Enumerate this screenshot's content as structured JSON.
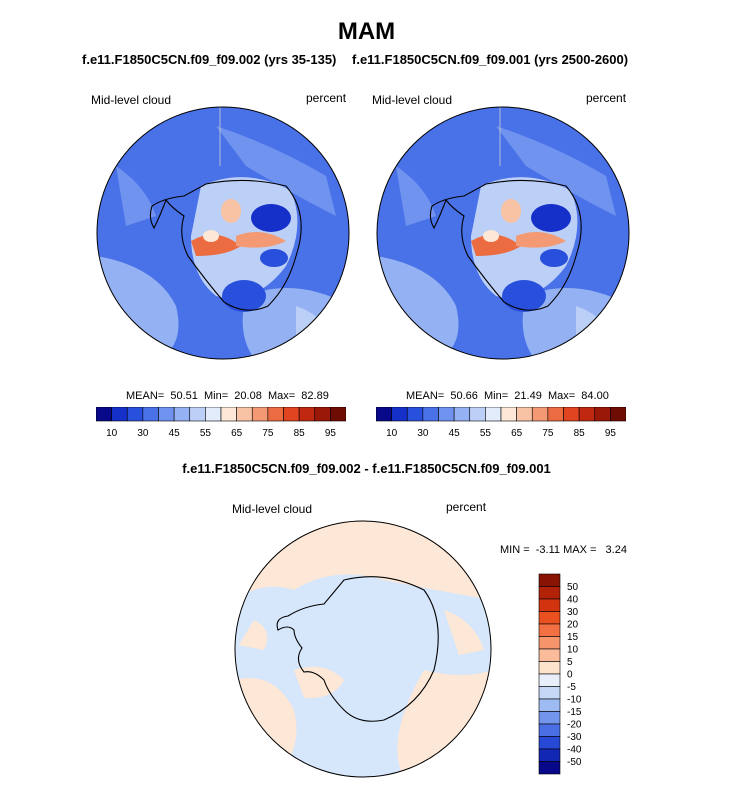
{
  "title": "MAM",
  "panels": [
    {
      "run_title": "f.e11.F1850C5CN.f09_f09.002 (yrs 35-135)",
      "variable": "Mid-level cloud",
      "units": "percent",
      "stats": {
        "mean_label": "MEAN=",
        "mean": "50.51",
        "min_label": "Min=",
        "min": "20.08",
        "max_label": "Max=",
        "max": "82.89"
      }
    },
    {
      "run_title": "f.e11.F1850C5CN.f09_f09.001 (yrs 2500-2600)",
      "variable": "Mid-level cloud",
      "units": "percent",
      "stats": {
        "mean_label": "MEAN=",
        "mean": "50.66",
        "min_label": "Min=",
        "min": "21.49",
        "max_label": "Max=",
        "max": "84.00"
      }
    }
  ],
  "colorbar": {
    "labels": [
      "10",
      "30",
      "45",
      "55",
      "65",
      "75",
      "85",
      "95"
    ],
    "colors": [
      "#08088a",
      "#1530c8",
      "#2850dc",
      "#4a72e8",
      "#6f93ef",
      "#94b2f3",
      "#bcd0f7",
      "#e2ecfb",
      "#fde7d6",
      "#f8c2a4",
      "#f39a74",
      "#ec6c42",
      "#e04420",
      "#c02810",
      "#9a1808",
      "#6e0c04"
    ]
  },
  "diff": {
    "title": "f.e11.F1850C5CN.f09_f09.002 - f.e11.F1850C5CN.f09_f09.001",
    "variable": "Mid-level cloud",
    "units": "percent",
    "minmax_text": "MIN =  -3.11 MAX =   3.24",
    "colorbar_labels": [
      "50",
      "40",
      "30",
      "20",
      "15",
      "10",
      "5",
      "0",
      "-5",
      "-10",
      "-15",
      "-20",
      "-30",
      "-40",
      "-50"
    ],
    "colorbar_colors": [
      "#8a1404",
      "#b22208",
      "#d23410",
      "#ea5020",
      "#f27044",
      "#f6946c",
      "#fabc9a",
      "#fde2cc",
      "#e8effa",
      "#c6d8f6",
      "#9ebcf2",
      "#7396ec",
      "#4a6ee4",
      "#2848d6",
      "#1228b4",
      "#08088a"
    ]
  }
}
